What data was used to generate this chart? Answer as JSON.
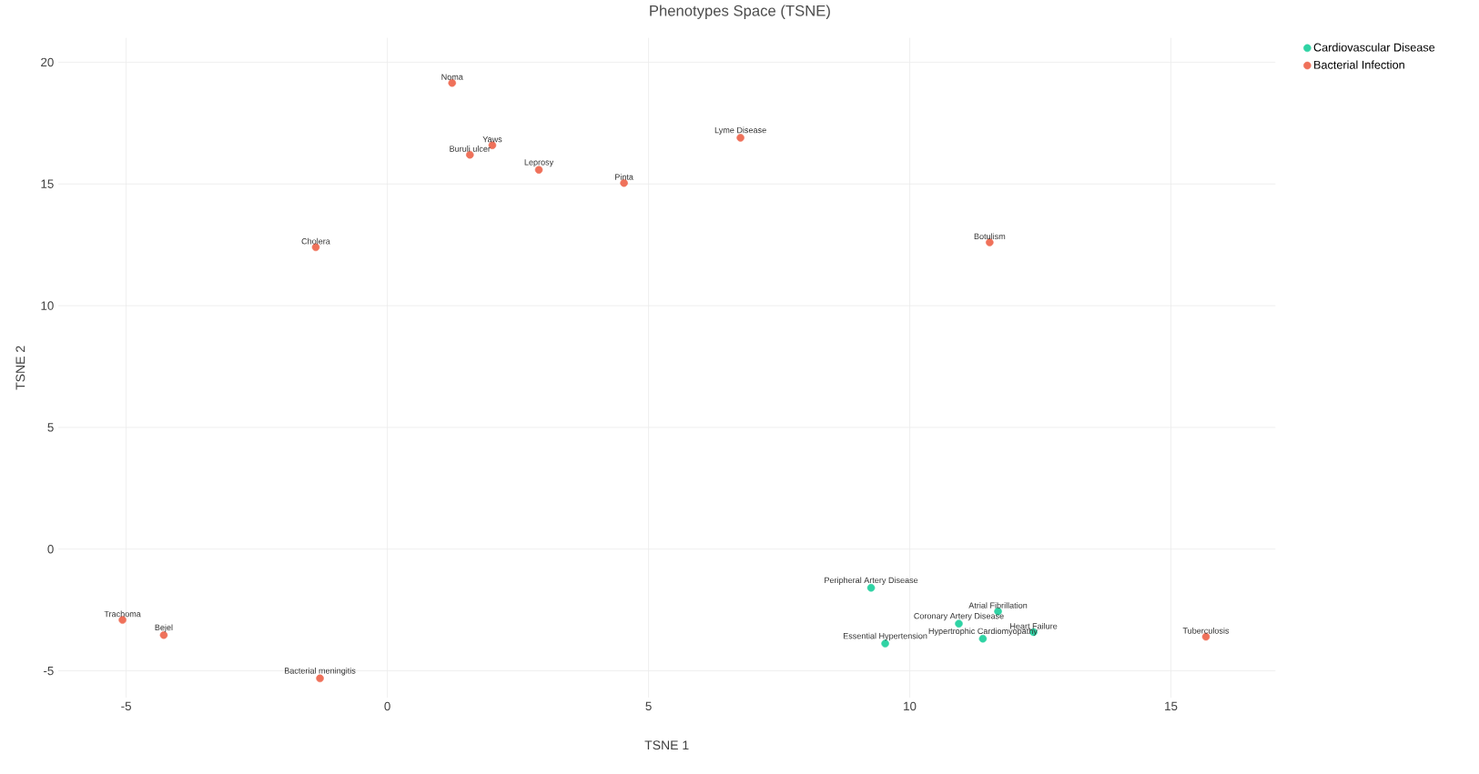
{
  "chart_data": {
    "type": "scatter",
    "title": "Phenotypes Space (TSNE)",
    "xlabel": "TSNE 1",
    "ylabel": "TSNE 2",
    "xlim": [
      -6.3,
      17
    ],
    "ylim": [
      -6.1,
      21
    ],
    "xticks": [
      -5,
      0,
      5,
      10,
      15
    ],
    "yticks": [
      -5,
      0,
      5,
      10,
      15,
      20
    ],
    "grid": true,
    "legend": "top right",
    "marker": "circle",
    "series": [
      {
        "name": "Cardiovascular Disease",
        "color": "#2fd3a4",
        "x": [
          9.26,
          11.69,
          10.94,
          12.37,
          11.4,
          9.53
        ],
        "values": [
          -1.59,
          -2.56,
          -3.06,
          -3.41,
          -3.68,
          -3.88
        ],
        "value_labels": [
          "Peripheral Artery Disease",
          "Atrial Fibrillation",
          "Coronary Artery Disease",
          "Heart Failure",
          "Hypertrophic Cardiomyopathy",
          "Essential Hypertension"
        ]
      },
      {
        "name": "Bacterial Infection",
        "color": "#ef715a",
        "x": [
          1.24,
          2.01,
          1.58,
          2.9,
          4.53,
          6.76,
          -1.37,
          11.53,
          -5.07,
          -4.28,
          -1.29,
          15.67
        ],
        "values": [
          19.15,
          16.59,
          16.2,
          15.58,
          15.04,
          16.9,
          12.4,
          12.6,
          -2.91,
          -3.53,
          -5.31,
          -3.6
        ],
        "value_labels": [
          "Noma",
          "Yaws",
          "Buruli ulcer",
          "Leprosy",
          "Pinta",
          "Lyme Disease",
          "Cholera",
          "Botulism",
          "Trachoma",
          "Bejel",
          "Bacterial meningitis",
          "Tuberculosis"
        ]
      }
    ]
  }
}
